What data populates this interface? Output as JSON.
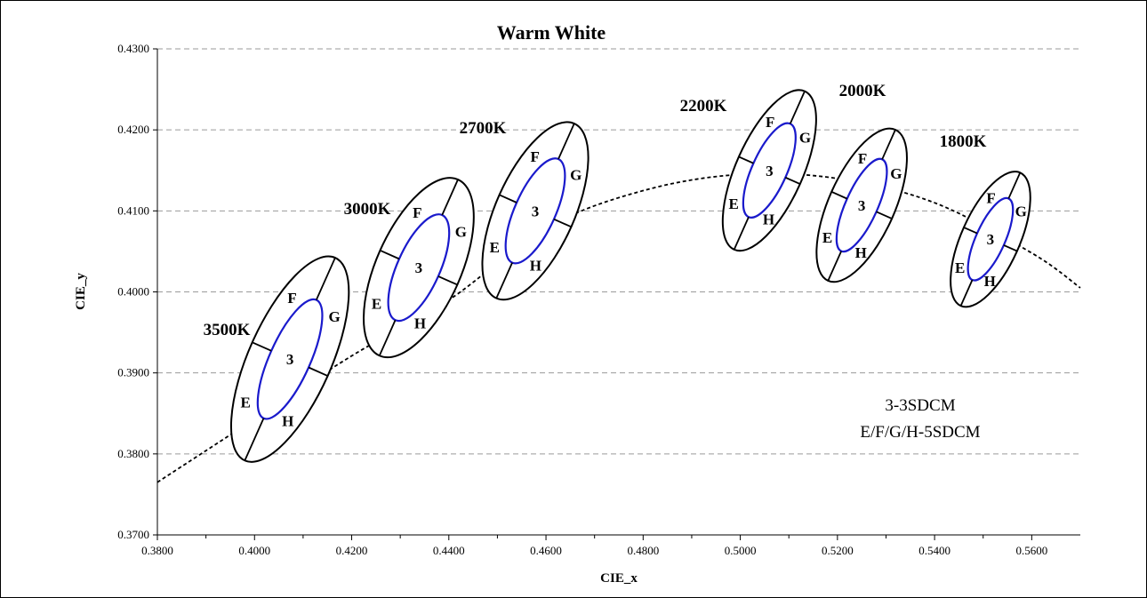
{
  "chart_data": {
    "type": "scatter",
    "title": "Warm White",
    "xlabel": "CIE_x",
    "ylabel": "CIE_y",
    "xlim": [
      0.38,
      0.57
    ],
    "ylim": [
      0.37,
      0.43
    ],
    "x_ticks": [
      "0.3800",
      "0.4000",
      "0.4200",
      "0.4400",
      "0.4600",
      "0.4800",
      "0.5000",
      "0.5200",
      "0.5400",
      "0.5600"
    ],
    "y_ticks": [
      "0.3700",
      "0.3800",
      "0.3900",
      "0.4000",
      "0.4100",
      "0.4200",
      "0.4300"
    ],
    "grid": "horizontal-dashed",
    "annotation_lines": [
      "3-3SDCM",
      "E/F/G/H-5SDCM"
    ],
    "center_label": "3",
    "segment_labels": [
      "E",
      "F",
      "G",
      "H"
    ],
    "planckian_locus": {
      "x": [
        0.38,
        0.4,
        0.42,
        0.44,
        0.46,
        0.48,
        0.5,
        0.52,
        0.54,
        0.56,
        0.57
      ],
      "y": [
        0.3765,
        0.3843,
        0.3921,
        0.399,
        0.4079,
        0.4125,
        0.4145,
        0.414,
        0.411,
        0.4048,
        0.4005
      ]
    },
    "series": [
      {
        "name": "3500K",
        "center": [
          0.4073,
          0.3917
        ],
        "outer_rx": 0.0085,
        "outer_ry": 0.0137,
        "inner_rx": 0.0042,
        "inner_ry": 0.008
      },
      {
        "name": "3000K",
        "center": [
          0.4338,
          0.403
        ],
        "outer_rx": 0.0087,
        "outer_ry": 0.0119,
        "inner_rx": 0.0044,
        "inner_ry": 0.0071
      },
      {
        "name": "2700K",
        "center": [
          0.4578,
          0.41
        ],
        "outer_rx": 0.0081,
        "outer_ry": 0.0118,
        "inner_rx": 0.0042,
        "inner_ry": 0.007
      },
      {
        "name": "2200K",
        "center": [
          0.506,
          0.415
        ],
        "outer_rx": 0.0069,
        "outer_ry": 0.0107,
        "inner_rx": 0.0036,
        "inner_ry": 0.0063
      },
      {
        "name": "2000K",
        "center": [
          0.525,
          0.4107
        ],
        "outer_rx": 0.0068,
        "outer_ry": 0.0102,
        "inner_rx": 0.0033,
        "inner_ry": 0.0062
      },
      {
        "name": "1800K",
        "center": [
          0.5515,
          0.4065
        ],
        "outer_rx": 0.006,
        "outer_ry": 0.009,
        "inner_rx": 0.003,
        "inner_ry": 0.0055
      }
    ]
  }
}
